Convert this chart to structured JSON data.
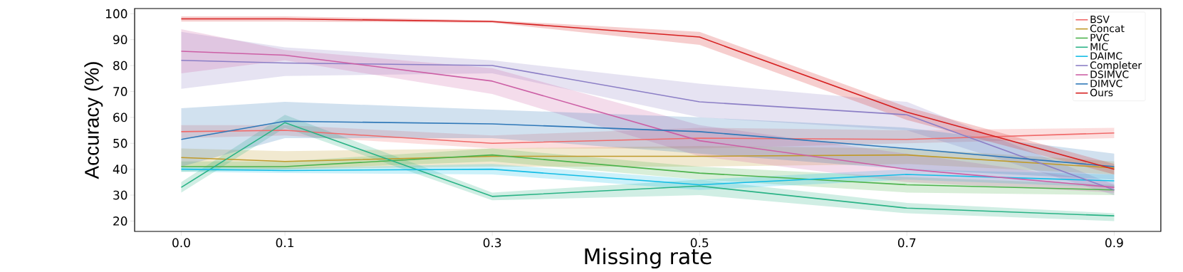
{
  "chart_data": {
    "type": "line",
    "xlabel": "Missing rate",
    "ylabel": "Accuracy (%)",
    "x": [
      0.0,
      0.1,
      0.3,
      0.5,
      0.7,
      0.9
    ],
    "xlim": [
      -0.045,
      0.945
    ],
    "ylim": [
      16,
      102
    ],
    "xticks": [
      {
        "value": 0.0,
        "label": "0.0"
      },
      0.1,
      0.3,
      0.5,
      0.7,
      0.9
    ],
    "yticks": [
      20,
      30,
      40,
      50,
      60,
      70,
      80,
      90,
      100
    ],
    "grid": false,
    "legend": "top right",
    "marker": "none",
    "line_style": "solid",
    "series": [
      {
        "name": "BSV",
        "color": "#f06a6a",
        "values": [
          54.5,
          55,
          50,
          52,
          51.5,
          54
        ],
        "lower": [
          52,
          53,
          48,
          48,
          50,
          52
        ],
        "upper": [
          57,
          57,
          53,
          56,
          55,
          56
        ]
      },
      {
        "name": "Concat",
        "color": "#c09a2a",
        "values": [
          44.5,
          43,
          45,
          45,
          45.5,
          40.5
        ],
        "lower": [
          41,
          40,
          41,
          41,
          42,
          38
        ],
        "upper": [
          48,
          47,
          48,
          49,
          48,
          43
        ]
      },
      {
        "name": "PVC",
        "color": "#4db34d",
        "values": [
          41,
          41,
          45.5,
          38.5,
          34,
          32
        ],
        "lower": [
          39,
          40,
          43,
          36,
          31,
          30
        ],
        "upper": [
          43,
          43,
          48,
          41,
          37,
          34
        ]
      },
      {
        "name": "MIC",
        "color": "#2ab386",
        "values": [
          33,
          58,
          29.5,
          33.5,
          25,
          22
        ],
        "lower": [
          31,
          56,
          28,
          30,
          23,
          20
        ],
        "upper": [
          35,
          61,
          31,
          36,
          27,
          23
        ]
      },
      {
        "name": "DAIMC",
        "color": "#14bde6",
        "values": [
          40,
          39.5,
          40,
          34,
          38,
          35.5
        ],
        "lower": [
          39,
          38.5,
          38,
          32,
          36,
          33
        ],
        "upper": [
          41,
          40.5,
          42,
          36,
          40,
          38
        ]
      },
      {
        "name": "Completer",
        "color": "#8c7fc6",
        "values": [
          82,
          81,
          80,
          66,
          61,
          32
        ],
        "lower": [
          71,
          76,
          77,
          60,
          55,
          30
        ],
        "upper": [
          93,
          87,
          82,
          73,
          66,
          34
        ]
      },
      {
        "name": "DSIMVC",
        "color": "#cc5fa5",
        "values": [
          85.5,
          84,
          74,
          51,
          40,
          33
        ],
        "lower": [
          77,
          82,
          69,
          45,
          35,
          31
        ],
        "upper": [
          94,
          86,
          79,
          57,
          46,
          35
        ]
      },
      {
        "name": "DIMVC",
        "color": "#2f78b8",
        "values": [
          51.5,
          58.5,
          57.5,
          54.5,
          48,
          41
        ],
        "lower": [
          41,
          52,
          52,
          46,
          40,
          36
        ],
        "upper": [
          63.5,
          66,
          63,
          60,
          56,
          46
        ]
      },
      {
        "name": "Ours",
        "color": "#d62020",
        "values": [
          98,
          98,
          97,
          91,
          62,
          40
        ],
        "lower": [
          97,
          97,
          96.5,
          88,
          59,
          38
        ],
        "upper": [
          99,
          99,
          97.5,
          93,
          64,
          42
        ]
      }
    ]
  }
}
